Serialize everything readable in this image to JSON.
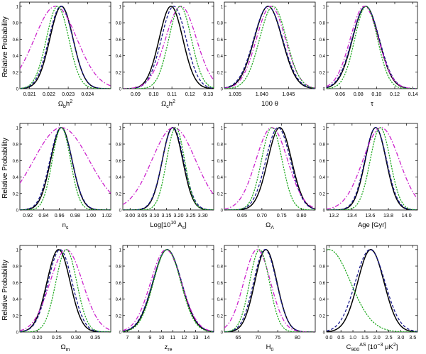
{
  "figure": {
    "ylabel": "Relative Probability",
    "colors": {
      "black": "#000000",
      "navy": "#1a1a8c",
      "magenta": "#cc22cc",
      "green": "#22aa22"
    }
  },
  "chart_data": [
    {
      "type": "line",
      "title": "",
      "xlabel": "Ω_b h^2",
      "xlabel_parts": [
        [
          "Ω",
          ""
        ],
        [
          "b",
          "sub"
        ],
        [
          "h",
          ""
        ],
        [
          "2",
          "sup"
        ]
      ],
      "xlim": [
        0.0205,
        0.0252
      ],
      "ylim": [
        0,
        1.05
      ],
      "xticks": [
        0.021,
        0.022,
        0.023,
        0.024
      ],
      "xticklabels": [
        "0.021",
        "0.022",
        "0.023",
        "0.024"
      ],
      "yticks": [
        0,
        0.2,
        0.4,
        0.6,
        0.8,
        1
      ],
      "yticklabels": [
        "0",
        "0.2",
        "0.4",
        "0.6",
        "0.8",
        "1"
      ],
      "series": [
        {
          "name": "black-solid",
          "color": "#000000",
          "style": "solid",
          "mu": 0.02265,
          "sigma": 0.0006
        },
        {
          "name": "navy-dashed",
          "color": "#1a1a8c",
          "style": "dashed",
          "mu": 0.02262,
          "sigma": 0.00062
        },
        {
          "name": "magenta-dashdot",
          "color": "#cc22cc",
          "style": "dashdot",
          "mu": 0.02235,
          "sigma": 0.0011
        },
        {
          "name": "green-dotted",
          "color": "#22aa22",
          "style": "dotted",
          "mu": 0.02245,
          "sigma": 0.00058
        }
      ]
    },
    {
      "type": "line",
      "title": "",
      "xlabel": "Ω_c h^2",
      "xlabel_parts": [
        [
          "Ω",
          ""
        ],
        [
          "c",
          "sub"
        ],
        [
          "h",
          ""
        ],
        [
          "2",
          "sup"
        ]
      ],
      "xlim": [
        0.083,
        0.133
      ],
      "ylim": [
        0,
        1.05
      ],
      "xticks": [
        0.09,
        0.1,
        0.11,
        0.12,
        0.13
      ],
      "xticklabels": [
        "0.09",
        "0.10",
        "0.11",
        "0.12",
        "0.13"
      ],
      "yticks": [
        0,
        0.2,
        0.4,
        0.6,
        0.8,
        1
      ],
      "yticklabels": [
        "0",
        "0.2",
        "0.4",
        "0.6",
        "0.8",
        "1"
      ],
      "series": [
        {
          "name": "black-solid",
          "color": "#000000",
          "style": "solid",
          "mu": 0.1095,
          "sigma": 0.0065
        },
        {
          "name": "navy-dashed",
          "color": "#1a1a8c",
          "style": "dashed",
          "mu": 0.111,
          "sigma": 0.0068
        },
        {
          "name": "magenta-dashdot",
          "color": "#cc22cc",
          "style": "dashdot",
          "mu": 0.115,
          "sigma": 0.0085
        },
        {
          "name": "green-dotted",
          "color": "#22aa22",
          "style": "dotted",
          "mu": 0.1145,
          "sigma": 0.0062
        }
      ]
    },
    {
      "type": "line",
      "title": "",
      "xlabel": "100 θ",
      "xlabel_parts": [
        [
          "100 θ",
          ""
        ]
      ],
      "xlim": [
        1.033,
        1.05
      ],
      "ylim": [
        0,
        1.05
      ],
      "xticks": [
        1.035,
        1.04,
        1.045
      ],
      "xticklabels": [
        "1.035",
        "1.040",
        "1.045"
      ],
      "yticks": [
        0,
        0.2,
        0.4,
        0.6,
        0.8,
        1
      ],
      "yticklabels": [
        "0",
        "0.2",
        "0.4",
        "0.6",
        "0.8",
        "1"
      ],
      "series": [
        {
          "name": "black-solid",
          "color": "#000000",
          "style": "solid",
          "mu": 1.0412,
          "sigma": 0.0026
        },
        {
          "name": "navy-dashed",
          "color": "#1a1a8c",
          "style": "dashed",
          "mu": 1.0412,
          "sigma": 0.0027
        },
        {
          "name": "magenta-dashdot",
          "color": "#cc22cc",
          "style": "dashdot",
          "mu": 1.0417,
          "sigma": 0.0027
        },
        {
          "name": "green-dotted",
          "color": "#22aa22",
          "style": "dotted",
          "mu": 1.0421,
          "sigma": 0.0025
        }
      ]
    },
    {
      "type": "line",
      "title": "",
      "xlabel": "τ",
      "xlabel_parts": [
        [
          "τ",
          ""
        ]
      ],
      "xlim": [
        0.045,
        0.145
      ],
      "ylim": [
        0,
        1.05
      ],
      "xticks": [
        0.06,
        0.08,
        0.1,
        0.12,
        0.14
      ],
      "xticklabels": [
        "0.06",
        "0.08",
        "0.10",
        "0.12",
        "0.14"
      ],
      "yticks": [
        0,
        0.2,
        0.4,
        0.6,
        0.8,
        1
      ],
      "yticklabels": [
        "0",
        "0.2",
        "0.4",
        "0.6",
        "0.8",
        "1"
      ],
      "series": [
        {
          "name": "black-solid",
          "color": "#000000",
          "style": "solid",
          "mu": 0.088,
          "sigma": 0.0145
        },
        {
          "name": "navy-dashed",
          "color": "#1a1a8c",
          "style": "dashed",
          "mu": 0.088,
          "sigma": 0.015
        },
        {
          "name": "magenta-dashdot",
          "color": "#cc22cc",
          "style": "dashdot",
          "mu": 0.0865,
          "sigma": 0.0155
        },
        {
          "name": "green-dotted",
          "color": "#22aa22",
          "style": "dotted",
          "mu": 0.0885,
          "sigma": 0.0125
        }
      ]
    },
    {
      "type": "line",
      "title": "",
      "xlabel": "n_s",
      "xlabel_parts": [
        [
          "n",
          ""
        ],
        [
          "s",
          "sub"
        ]
      ],
      "xlim": [
        0.91,
        1.025
      ],
      "ylim": [
        0,
        1.05
      ],
      "xticks": [
        0.92,
        0.94,
        0.96,
        0.98,
        1,
        1.02
      ],
      "xticklabels": [
        "0.92",
        "0.94",
        "0.96",
        "0.98",
        "1.00",
        "1.02"
      ],
      "yticks": [
        0,
        0.2,
        0.4,
        0.6,
        0.8,
        1
      ],
      "yticklabels": [
        "0",
        "0.2",
        "0.4",
        "0.6",
        "0.8",
        "1"
      ],
      "series": [
        {
          "name": "black-solid",
          "color": "#000000",
          "style": "solid",
          "mu": 0.9625,
          "sigma": 0.0135
        },
        {
          "name": "navy-dashed",
          "color": "#1a1a8c",
          "style": "dashed",
          "mu": 0.962,
          "sigma": 0.014
        },
        {
          "name": "magenta-dashdot",
          "color": "#cc22cc",
          "style": "dashdot",
          "mu": 0.9625,
          "sigma": 0.035
        },
        {
          "name": "green-dotted",
          "color": "#22aa22",
          "style": "dotted",
          "mu": 0.9625,
          "sigma": 0.0115
        }
      ]
    },
    {
      "type": "line",
      "title": "",
      "xlabel": "Log[10^10 A_s]",
      "xlabel_parts": [
        [
          "Log[10",
          ""
        ],
        [
          "10",
          "sup"
        ],
        [
          " A",
          ""
        ],
        [
          "s",
          "sub"
        ],
        [
          "]",
          ""
        ]
      ],
      "xlim": [
        2.97,
        3.345
      ],
      "ylim": [
        0,
        1.05
      ],
      "xticks": [
        3,
        3.05,
        3.1,
        3.15,
        3.2,
        3.25,
        3.3
      ],
      "xticklabels": [
        "3.00",
        "3.05",
        "3.10",
        "3.15",
        "3.20",
        "3.25",
        "3.30"
      ],
      "yticks": [
        0,
        0.2,
        0.4,
        0.6,
        0.8,
        1
      ],
      "yticklabels": [
        "0",
        "0.2",
        "0.4",
        "0.6",
        "0.8",
        "1"
      ],
      "series": [
        {
          "name": "black-solid",
          "color": "#000000",
          "style": "solid",
          "mu": 3.175,
          "sigma": 0.042
        },
        {
          "name": "navy-dashed",
          "color": "#1a1a8c",
          "style": "dashed",
          "mu": 3.177,
          "sigma": 0.044
        },
        {
          "name": "magenta-dashdot",
          "color": "#cc22cc",
          "style": "dashdot",
          "mu": 3.18,
          "sigma": 0.09
        },
        {
          "name": "green-dotted",
          "color": "#22aa22",
          "style": "dotted",
          "mu": 3.188,
          "sigma": 0.037
        }
      ]
    },
    {
      "type": "line",
      "title": "",
      "xlabel": "Ω_Λ",
      "xlabel_parts": [
        [
          "Ω",
          ""
        ],
        [
          "Λ",
          "sub"
        ]
      ],
      "xlim": [
        0.605,
        0.835
      ],
      "ylim": [
        0,
        1.05
      ],
      "xticks": [
        0.65,
        0.7,
        0.75,
        0.8
      ],
      "xticklabels": [
        "0.65",
        "0.70",
        "0.75",
        "0.80"
      ],
      "yticks": [
        0,
        0.2,
        0.4,
        0.6,
        0.8,
        1
      ],
      "yticklabels": [
        "0",
        "0.2",
        "0.4",
        "0.6",
        "0.8",
        "1"
      ],
      "series": [
        {
          "name": "black-solid",
          "color": "#000000",
          "style": "solid",
          "mu": 0.745,
          "sigma": 0.03
        },
        {
          "name": "navy-dashed",
          "color": "#1a1a8c",
          "style": "dashed",
          "mu": 0.741,
          "sigma": 0.031
        },
        {
          "name": "magenta-dashdot",
          "color": "#cc22cc",
          "style": "dashdot",
          "mu": 0.725,
          "sigma": 0.04
        },
        {
          "name": "green-dotted",
          "color": "#22aa22",
          "style": "dotted",
          "mu": 0.725,
          "sigma": 0.026
        }
      ]
    },
    {
      "type": "line",
      "title": "",
      "xlabel": "Age [Gyr]",
      "xlabel_parts": [
        [
          "Age [Gyr]",
          ""
        ]
      ],
      "xlim": [
        13.12,
        14.12
      ],
      "ylim": [
        0,
        1.05
      ],
      "xticks": [
        13.2,
        13.4,
        13.6,
        13.8,
        14
      ],
      "xticklabels": [
        "13.2",
        "13.4",
        "13.6",
        "13.8",
        "14.0"
      ],
      "yticks": [
        0,
        0.2,
        0.4,
        0.6,
        0.8,
        1
      ],
      "yticklabels": [
        "0",
        "0.2",
        "0.4",
        "0.6",
        "0.8",
        "1"
      ],
      "series": [
        {
          "name": "black-solid",
          "color": "#000000",
          "style": "solid",
          "mu": 13.66,
          "sigma": 0.115
        },
        {
          "name": "navy-dashed",
          "color": "#1a1a8c",
          "style": "dashed",
          "mu": 13.66,
          "sigma": 0.12
        },
        {
          "name": "magenta-dashdot",
          "color": "#cc22cc",
          "style": "dashdot",
          "mu": 13.72,
          "sigma": 0.2
        },
        {
          "name": "green-dotted",
          "color": "#22aa22",
          "style": "dotted",
          "mu": 13.71,
          "sigma": 0.11
        }
      ]
    },
    {
      "type": "line",
      "title": "",
      "xlabel": "Ω_m",
      "xlabel_parts": [
        [
          "Ω",
          ""
        ],
        [
          "m",
          "sub"
        ]
      ],
      "xlim": [
        0.155,
        0.39
      ],
      "ylim": [
        0,
        1.05
      ],
      "xticks": [
        0.2,
        0.25,
        0.3,
        0.35
      ],
      "xticklabels": [
        "0.20",
        "0.25",
        "0.30",
        "0.35"
      ],
      "yticks": [
        0,
        0.2,
        0.4,
        0.6,
        0.8,
        1
      ],
      "yticklabels": [
        "0",
        "0.2",
        "0.4",
        "0.6",
        "0.8",
        "1"
      ],
      "series": [
        {
          "name": "black-solid",
          "color": "#000000",
          "style": "solid",
          "mu": 0.255,
          "sigma": 0.03
        },
        {
          "name": "navy-dashed",
          "color": "#1a1a8c",
          "style": "dashed",
          "mu": 0.259,
          "sigma": 0.031
        },
        {
          "name": "magenta-dashdot",
          "color": "#cc22cc",
          "style": "dashdot",
          "mu": 0.275,
          "sigma": 0.042
        },
        {
          "name": "green-dotted",
          "color": "#22aa22",
          "style": "dotted",
          "mu": 0.275,
          "sigma": 0.027
        }
      ]
    },
    {
      "type": "line",
      "title": "",
      "xlabel": "z_re",
      "xlabel_parts": [
        [
          "z",
          ""
        ],
        [
          "re",
          "sub"
        ]
      ],
      "xlim": [
        6.6,
        14.6
      ],
      "ylim": [
        0,
        1.05
      ],
      "xticks": [
        7,
        8,
        9,
        10,
        11,
        12,
        13,
        14
      ],
      "xticklabels": [
        "7",
        "8",
        "9",
        "10",
        "11",
        "12",
        "13",
        "14"
      ],
      "yticks": [
        0,
        0.2,
        0.4,
        0.6,
        0.8,
        1
      ],
      "yticklabels": [
        "0",
        "0.2",
        "0.4",
        "0.6",
        "0.8",
        "1"
      ],
      "series": [
        {
          "name": "black-solid",
          "color": "#000000",
          "style": "solid",
          "mu": 10.5,
          "sigma": 1.25
        },
        {
          "name": "navy-dashed",
          "color": "#1a1a8c",
          "style": "dashed",
          "mu": 10.5,
          "sigma": 1.28
        },
        {
          "name": "magenta-dashdot",
          "color": "#cc22cc",
          "style": "dashdot",
          "mu": 10.4,
          "sigma": 1.35
        },
        {
          "name": "green-dotted",
          "color": "#22aa22",
          "style": "dotted",
          "mu": 10.5,
          "sigma": 1.2
        }
      ]
    },
    {
      "type": "line",
      "title": "",
      "xlabel": "H_0",
      "xlabel_parts": [
        [
          "H",
          ""
        ],
        [
          "0",
          "sub"
        ]
      ],
      "xlim": [
        61.5,
        84.5
      ],
      "ylim": [
        0,
        1.05
      ],
      "xticks": [
        65,
        70,
        75,
        80
      ],
      "xticklabels": [
        "65",
        "70",
        "75",
        "80"
      ],
      "yticks": [
        0,
        0.2,
        0.4,
        0.6,
        0.8,
        1
      ],
      "yticklabels": [
        "0",
        "0.2",
        "0.4",
        "0.6",
        "0.8",
        "1"
      ],
      "series": [
        {
          "name": "black-solid",
          "color": "#000000",
          "style": "solid",
          "mu": 72,
          "sigma": 2.8
        },
        {
          "name": "navy-dashed",
          "color": "#1a1a8c",
          "style": "dashed",
          "mu": 71.8,
          "sigma": 2.9
        },
        {
          "name": "magenta-dashdot",
          "color": "#cc22cc",
          "style": "dashdot",
          "mu": 69.8,
          "sigma": 3.4
        },
        {
          "name": "green-dotted",
          "color": "#22aa22",
          "style": "dotted",
          "mu": 70.4,
          "sigma": 2.5
        }
      ]
    },
    {
      "type": "line",
      "title": "",
      "xlabel": "C_900^AS [10^-3 μK^2]",
      "xlabel_parts": [
        [
          "C",
          ""
        ],
        [
          "900",
          "sub"
        ],
        [
          "AS",
          "sup"
        ],
        [
          " [10",
          ""
        ],
        [
          "−3",
          "sup"
        ],
        [
          " μK",
          ""
        ],
        [
          "2",
          "sup"
        ],
        [
          "]",
          ""
        ]
      ],
      "xlim": [
        -0.1,
        3.7
      ],
      "ylim": [
        0,
        1.05
      ],
      "xticks": [
        0,
        0.5,
        1,
        1.5,
        2,
        2.5,
        3,
        3.5
      ],
      "xticklabels": [
        "0.0",
        "0.5",
        "1.0",
        "1.5",
        "2.0",
        "2.5",
        "3.0",
        "3.5"
      ],
      "yticks": [
        0,
        0.2,
        0.4,
        0.6,
        0.8,
        1
      ],
      "yticklabels": [
        "0",
        "0.2",
        "0.4",
        "0.6",
        "0.8",
        "1"
      ],
      "series": [
        {
          "name": "black-solid",
          "color": "#000000",
          "style": "solid",
          "mu": 1.75,
          "sigma": 0.55
        },
        {
          "name": "navy-dashed",
          "color": "#1a1a8c",
          "style": "dashed",
          "mu": 1.72,
          "sigma": 0.62
        },
        {
          "name": "green-dotted",
          "color": "#22aa22",
          "style": "dotted",
          "mu": 0,
          "sigma": 0.9
        }
      ]
    }
  ]
}
